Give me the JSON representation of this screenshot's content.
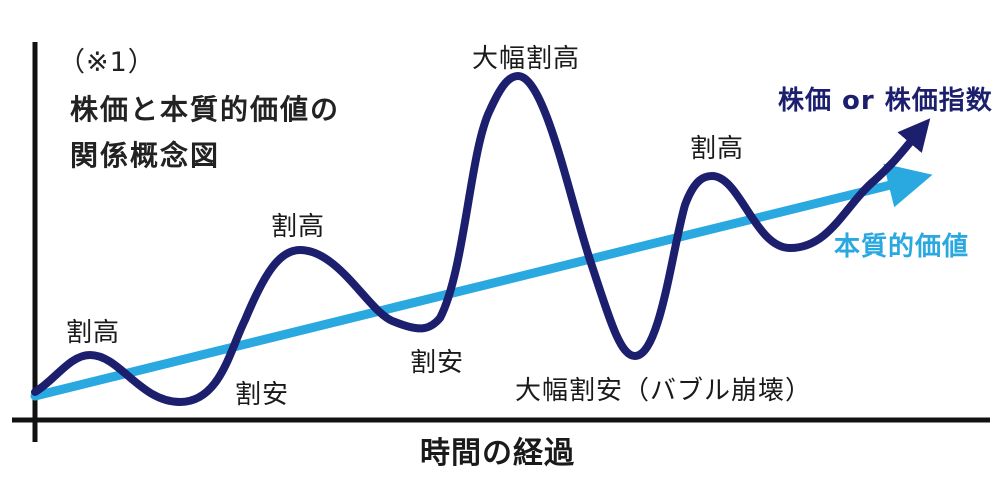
{
  "title": {
    "note": "（※1）",
    "line1": "株価と本質的価値の",
    "line2": "関係概念図"
  },
  "x_axis_label": "時間の経過",
  "legend": {
    "price": "株価 or 株価指数",
    "value": "本質的価値"
  },
  "annotations": {
    "a1": "割高",
    "a2": "割安",
    "a3": "割高",
    "a4": "割安",
    "a5": "大幅割高",
    "a6": "大幅割安（バブル崩壊）",
    "a7": "割高"
  },
  "colors": {
    "price_line": "#1c1f6e",
    "value_line": "#2aa8e0",
    "axis": "#111111"
  }
}
